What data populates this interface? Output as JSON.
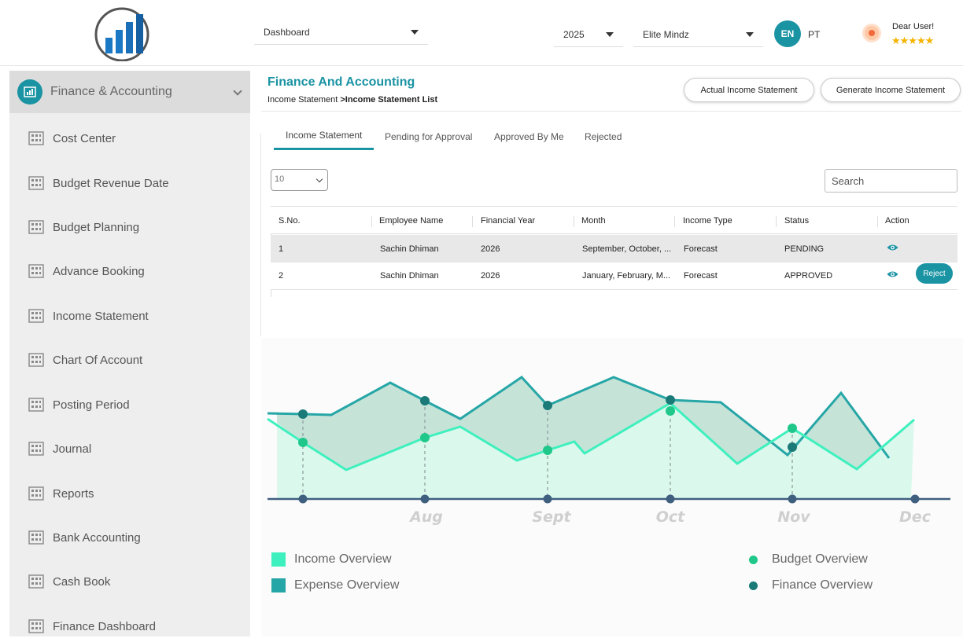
{
  "header": {
    "module_select": "Dashboard",
    "year_select": "2025",
    "company_select": "Elite Mindz",
    "lang_active": "EN",
    "lang_alt": "PT",
    "greeting": "Dear User!",
    "rating_stars": "★★★★★"
  },
  "sidebar": {
    "section_title": "Finance & Accounting",
    "items": [
      {
        "label": "Cost Center"
      },
      {
        "label": "Budget Revenue Date"
      },
      {
        "label": "Budget Planning"
      },
      {
        "label": "Advance Booking"
      },
      {
        "label": "Income Statement"
      },
      {
        "label": "Chart Of Account"
      },
      {
        "label": "Posting Period"
      },
      {
        "label": "Journal"
      },
      {
        "label": "Reports"
      },
      {
        "label": "Bank Accounting"
      },
      {
        "label": "Cash Book"
      },
      {
        "label": "Finance Dashboard"
      }
    ]
  },
  "main": {
    "title": "Finance And Accounting",
    "breadcrumb_parent": "Income Statement",
    "breadcrumb_sep": " >",
    "breadcrumb_current": "Income Statement List",
    "actual_btn": "Actual Income Statement",
    "generate_btn": "Generate Income Statement",
    "tabs": [
      {
        "label": "Income Statement"
      },
      {
        "label": "Pending for Approval"
      },
      {
        "label": "Approved By Me"
      },
      {
        "label": "Rejected"
      }
    ],
    "page_size": "10",
    "search_placeholder": "Search"
  },
  "table": {
    "columns": [
      "S.No.",
      "Employee Name",
      "Financial Year",
      "Month",
      "Income Type",
      "Status",
      "Action"
    ],
    "rows": [
      {
        "sno": "1",
        "employee": "Sachin Dhiman",
        "year": "2026",
        "month": "September, October, ...",
        "type": "Forecast",
        "status": "PENDING"
      },
      {
        "sno": "2",
        "employee": "Sachin Dhiman",
        "year": "2026",
        "month": "January, February, M...",
        "type": "Forecast",
        "status": "APPROVED",
        "reject_label": "Reject"
      }
    ]
  },
  "chart_data": {
    "type": "area",
    "x_labels": [
      "",
      "Aug",
      "Sept",
      "Oct",
      "Nov",
      "Dec"
    ],
    "grid": false,
    "legend_position": "bottom",
    "series": [
      {
        "name": "Income Overview",
        "color": "#3ef0bd"
      },
      {
        "name": "Expense Overview",
        "color": "#26a6a6"
      },
      {
        "name": "Budget Overview",
        "color": "#1fc88a"
      },
      {
        "name": "Finance Overview",
        "color": "#1a7a78"
      }
    ]
  },
  "colors": {
    "accent": "#1a93a3",
    "sidebar_bg": "#eeeeee",
    "income": "#3ef0bd",
    "expense": "#26a6a6",
    "axis": "#3f5f7f"
  }
}
